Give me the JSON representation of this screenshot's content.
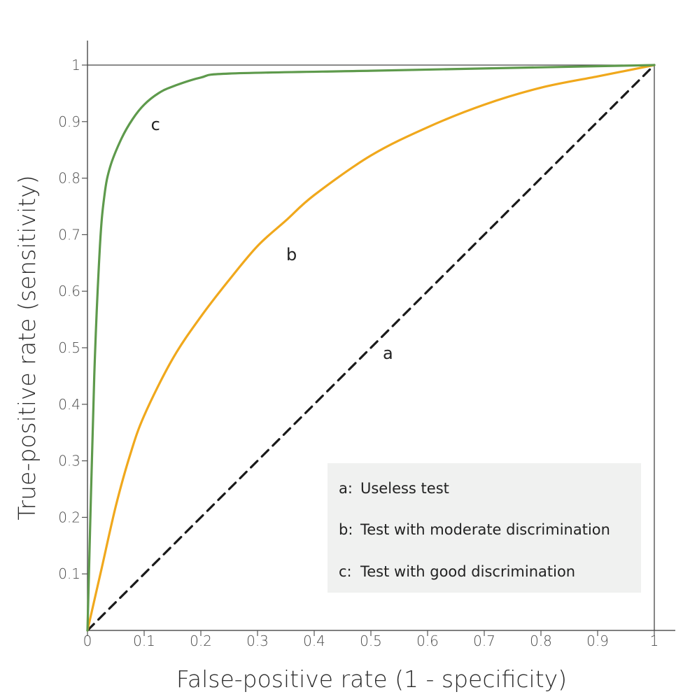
{
  "chart_data": {
    "type": "line",
    "xlabel": "False-positive rate (1 - specificity)",
    "ylabel": "True-positive rate (sensitivity)",
    "xlim": [
      0,
      1
    ],
    "ylim": [
      0,
      1
    ],
    "x_ticks": [
      "0",
      "0.1",
      "0.2",
      "0.3",
      "0.4",
      "0.5",
      "0.6",
      "0.7",
      "0.8",
      "0.9",
      "1"
    ],
    "y_ticks": [
      "0.1",
      "0.2",
      "0.3",
      "0.4",
      "0.5",
      "0.6",
      "0.7",
      "0.8",
      "0.9",
      "1"
    ],
    "grid": false,
    "series": [
      {
        "key": "a",
        "color": "#1a1a1a",
        "style": "dashed",
        "x": [
          0,
          1
        ],
        "y": [
          0,
          1
        ]
      },
      {
        "key": "b",
        "color": "#f0a81c",
        "style": "solid",
        "x": [
          0,
          0.025,
          0.05,
          0.075,
          0.1,
          0.15,
          0.2,
          0.25,
          0.3,
          0.35,
          0.4,
          0.5,
          0.6,
          0.7,
          0.8,
          0.9,
          1.0
        ],
        "y": [
          0,
          0.11,
          0.22,
          0.31,
          0.38,
          0.48,
          0.555,
          0.62,
          0.68,
          0.725,
          0.77,
          0.84,
          0.89,
          0.93,
          0.96,
          0.98,
          1.0
        ]
      },
      {
        "key": "c",
        "color": "#5e9a4c",
        "style": "solid",
        "x": [
          0,
          0.012,
          0.022,
          0.03,
          0.04,
          0.06,
          0.08,
          0.1,
          0.125,
          0.15,
          0.2,
          0.25,
          0.5,
          0.75,
          1.0
        ],
        "y": [
          0,
          0.45,
          0.68,
          0.77,
          0.82,
          0.87,
          0.905,
          0.93,
          0.95,
          0.962,
          0.978,
          0.985,
          0.99,
          0.995,
          1.0
        ]
      }
    ],
    "curve_labels": [
      {
        "text": "a",
        "x": 0.53,
        "y": 0.48
      },
      {
        "text": "b",
        "x": 0.36,
        "y": 0.655
      },
      {
        "text": "c",
        "x": 0.12,
        "y": 0.885
      }
    ],
    "legend_position": "bottom-right",
    "legend": [
      {
        "key": "a:",
        "label": "Useless test"
      },
      {
        "key": "b:",
        "label": "Test with moderate discrimination"
      },
      {
        "key": "c:",
        "label": "Test with good discrimination"
      }
    ]
  }
}
